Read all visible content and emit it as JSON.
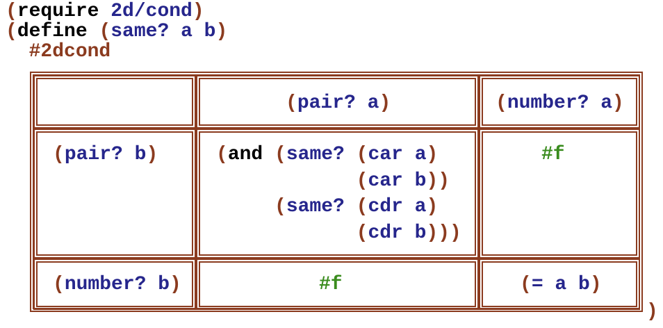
{
  "colors": {
    "paren": "#8b3b1f",
    "keyword": "#000000",
    "identifier": "#26268c",
    "constant": "#3a8c1e",
    "box_border": "#8b3b1f"
  },
  "header_lines": [
    [
      {
        "t": "(",
        "c": "p"
      },
      {
        "t": "require ",
        "c": "k"
      },
      {
        "t": "2d/cond",
        "c": "b"
      },
      {
        "t": ")",
        "c": "p"
      }
    ],
    [
      {
        "t": "(",
        "c": "p"
      },
      {
        "t": "define ",
        "c": "k"
      },
      {
        "t": "(",
        "c": "p"
      },
      {
        "t": "same? a b",
        "c": "b"
      },
      {
        "t": ")",
        "c": "p"
      }
    ],
    [
      {
        "t": "  #2dcond",
        "c": "p"
      }
    ]
  ],
  "table": {
    "col_headers": [
      [
        {
          "t": "(",
          "c": "p"
        },
        {
          "t": "pair? a",
          "c": "b"
        },
        {
          "t": ")",
          "c": "p"
        }
      ],
      [
        {
          "t": "(",
          "c": "p"
        },
        {
          "t": "number? a",
          "c": "b"
        },
        {
          "t": ")",
          "c": "p"
        }
      ]
    ],
    "row_headers": [
      [
        {
          "t": "(",
          "c": "p"
        },
        {
          "t": "pair? b",
          "c": "b"
        },
        {
          "t": ")",
          "c": "p"
        }
      ],
      [
        {
          "t": "(",
          "c": "p"
        },
        {
          "t": "number? b",
          "c": "b"
        },
        {
          "t": ")",
          "c": "p"
        }
      ]
    ],
    "body": {
      "pair_pair": [
        [
          {
            "t": "(",
            "c": "p"
          },
          {
            "t": "and ",
            "c": "k"
          },
          {
            "t": "(",
            "c": "p"
          },
          {
            "t": "same? ",
            "c": "b"
          },
          {
            "t": "(",
            "c": "p"
          },
          {
            "t": "car a",
            "c": "b"
          },
          {
            "t": ")",
            "c": "p"
          }
        ],
        [
          {
            "t": "            (",
            "c": "p"
          },
          {
            "t": "car b",
            "c": "b"
          },
          {
            "t": "))",
            "c": "p"
          }
        ],
        [
          {
            "t": "     (",
            "c": "p"
          },
          {
            "t": "same? ",
            "c": "b"
          },
          {
            "t": "(",
            "c": "p"
          },
          {
            "t": "cdr a",
            "c": "b"
          },
          {
            "t": ")",
            "c": "p"
          }
        ],
        [
          {
            "t": "            (",
            "c": "p"
          },
          {
            "t": "cdr b",
            "c": "b"
          },
          {
            "t": ")))",
            "c": "p"
          }
        ]
      ],
      "pair_number": [
        [
          {
            "t": "#f",
            "c": "g"
          }
        ]
      ],
      "number_pair": [
        [
          {
            "t": "#f",
            "c": "g"
          }
        ]
      ],
      "number_number": [
        [
          {
            "t": "(",
            "c": "p"
          },
          {
            "t": "= a b",
            "c": "b"
          },
          {
            "t": ")",
            "c": "p"
          }
        ]
      ]
    }
  },
  "closing": [
    {
      "t": ")",
      "c": "p"
    }
  ]
}
